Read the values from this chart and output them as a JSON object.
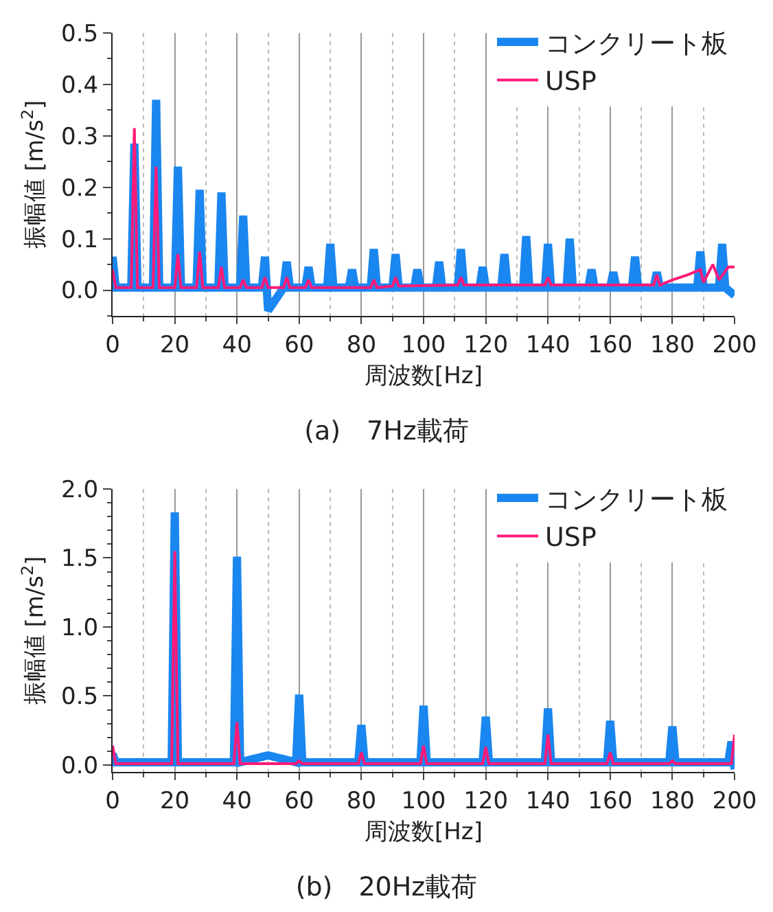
{
  "chart_data": [
    {
      "type": "line",
      "title": "(a)　7Hz載荷",
      "xlabel": "周波数[Hz]",
      "ylabel": "振幅値 [m/s$^{2}$]",
      "xlim": [
        0,
        200
      ],
      "xticks": [
        0,
        20,
        40,
        60,
        80,
        100,
        120,
        140,
        160,
        180,
        200
      ],
      "ylim": [
        -0.05,
        0.5
      ],
      "yticks": [
        {
          "value": 0,
          "label": "0.0"
        },
        0.1,
        0.2,
        0.3,
        0.4,
        0.5
      ],
      "grid": "x",
      "legend": "top right",
      "marker": "none",
      "line_style": "solid",
      "series": [
        {
          "name": "コンクリート板",
          "color": "#1a86f0",
          "x": [
            0,
            1,
            6,
            7,
            8,
            13,
            14,
            15,
            20,
            21,
            22,
            27,
            28,
            29,
            34,
            35,
            36,
            41,
            42,
            43,
            48,
            49,
            50,
            55,
            56,
            57,
            62,
            63,
            64,
            69,
            70,
            71,
            76,
            77,
            78,
            83,
            84,
            85,
            90,
            91,
            92,
            97,
            98,
            99,
            104,
            105,
            106,
            111,
            112,
            113,
            118,
            119,
            120,
            125,
            126,
            127,
            132,
            133,
            134,
            139,
            140,
            141,
            146,
            147,
            148,
            153,
            154,
            155,
            160,
            161,
            162,
            167,
            168,
            169,
            174,
            175,
            176,
            188,
            189,
            190,
            195,
            196,
            197,
            200
          ],
          "values": [
            0.065,
            0.005,
            0.005,
            0.285,
            0.005,
            0.005,
            0.37,
            0.005,
            0.005,
            0.24,
            0.005,
            0.005,
            0.195,
            0.005,
            0.005,
            0.19,
            0.005,
            0.005,
            0.145,
            0.005,
            0.005,
            0.065,
            -0.04,
            0.005,
            0.055,
            0.005,
            0.005,
            0.045,
            0.005,
            0.005,
            0.09,
            0.005,
            0.005,
            0.04,
            0.005,
            0.005,
            0.08,
            0.005,
            0.005,
            0.07,
            0.005,
            0.005,
            0.04,
            0.005,
            0.005,
            0.055,
            0.005,
            0.005,
            0.08,
            0.005,
            0.005,
            0.045,
            0.005,
            0.005,
            0.07,
            0.005,
            0.005,
            0.105,
            0.005,
            0.005,
            0.09,
            0.005,
            0.005,
            0.1,
            0.005,
            0.005,
            0.04,
            0.005,
            0.005,
            0.035,
            0.005,
            0.005,
            0.065,
            0.005,
            0.005,
            0.035,
            0.005,
            0.005,
            0.075,
            0.005,
            0.005,
            0.09,
            0.005,
            -0.01
          ]
        },
        {
          "name": "USP",
          "color": "#ff1a7a",
          "x": [
            0,
            1,
            6,
            7,
            8,
            13,
            14,
            15,
            20,
            21,
            22,
            27,
            28,
            29,
            34,
            35,
            36,
            41,
            42,
            43,
            48,
            49,
            50,
            55,
            56,
            57,
            62,
            63,
            64,
            83,
            84,
            85,
            90,
            91,
            92,
            111,
            112,
            113,
            139,
            140,
            141,
            174,
            175,
            176,
            180,
            185,
            189,
            190,
            193,
            195,
            198,
            200
          ],
          "values": [
            0.04,
            0.005,
            0.005,
            0.315,
            0.005,
            0.005,
            0.24,
            0.005,
            0.005,
            0.07,
            0.005,
            0.005,
            0.075,
            0.005,
            0.005,
            0.045,
            0.005,
            0.005,
            0.02,
            0.005,
            0.005,
            0.025,
            0.005,
            0.005,
            0.025,
            0.005,
            0.005,
            0.02,
            0.005,
            0.005,
            0.02,
            0.005,
            0.008,
            0.025,
            0.008,
            0.01,
            0.025,
            0.01,
            0.01,
            0.025,
            0.01,
            0.01,
            0.03,
            0.01,
            0.02,
            0.03,
            0.04,
            0.015,
            0.05,
            0.02,
            0.045,
            0.045
          ]
        }
      ]
    },
    {
      "type": "line",
      "title": "(b)　20Hz載荷",
      "xlabel": "周波数[Hz]",
      "ylabel": "振幅値 [m/s$^{2}$]",
      "xlim": [
        0,
        200
      ],
      "xticks": [
        0,
        20,
        40,
        60,
        80,
        100,
        120,
        140,
        160,
        180,
        200
      ],
      "ylim": [
        -0.05,
        2.0
      ],
      "yticks": [
        {
          "value": 0,
          "label": "0.0"
        },
        0.5,
        {
          "value": 1,
          "label": "1.0"
        },
        1.5,
        {
          "value": 2,
          "label": "2.0"
        }
      ],
      "grid": "x",
      "legend": "top right",
      "marker": "none",
      "line_style": "solid",
      "series": [
        {
          "name": "コンクリート板",
          "color": "#1a86f0",
          "x": [
            0,
            1,
            19,
            20,
            21,
            39,
            40,
            41,
            50,
            59,
            60,
            61,
            79,
            80,
            81,
            99,
            100,
            101,
            119,
            120,
            121,
            139,
            140,
            141,
            159,
            160,
            161,
            179,
            180,
            181,
            198,
            199,
            200
          ],
          "values": [
            0.08,
            0.02,
            0.02,
            1.83,
            0.02,
            0.02,
            1.51,
            0.02,
            0.07,
            0.02,
            0.51,
            0.02,
            0.02,
            0.29,
            0.02,
            0.02,
            0.43,
            0.02,
            0.02,
            0.35,
            0.02,
            0.02,
            0.41,
            0.02,
            0.02,
            0.32,
            0.02,
            0.02,
            0.28,
            0.02,
            0.02,
            0.17,
            -0.03
          ]
        },
        {
          "name": "USP",
          "color": "#ff1a7a",
          "x": [
            0,
            1,
            19,
            20,
            21,
            39,
            40,
            41,
            59,
            60,
            61,
            79,
            80,
            81,
            99,
            100,
            101,
            119,
            120,
            121,
            139,
            140,
            141,
            159,
            160,
            161,
            179,
            180,
            181,
            199,
            200
          ],
          "values": [
            0.14,
            0.01,
            0.01,
            1.55,
            0.01,
            0.01,
            0.31,
            0.01,
            0.01,
            0.03,
            0.01,
            0.01,
            0.09,
            0.01,
            0.01,
            0.14,
            0.01,
            0.01,
            0.13,
            0.01,
            0.01,
            0.22,
            0.01,
            0.01,
            0.09,
            0.01,
            0.01,
            0.03,
            0.01,
            0.01,
            0.22
          ]
        }
      ]
    }
  ]
}
